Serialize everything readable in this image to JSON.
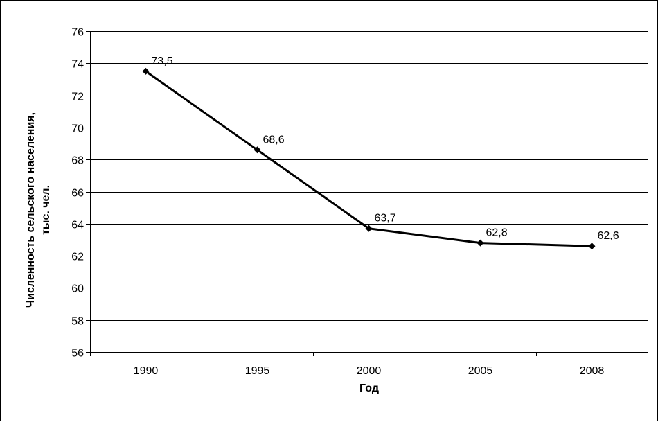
{
  "chart_data": {
    "type": "line",
    "title": "",
    "xlabel": "Год",
    "ylabel_lines": [
      "Численность сельского населения,",
      "тыс. чел."
    ],
    "categories": [
      "1990",
      "1995",
      "2000",
      "2005",
      "2008"
    ],
    "series": [
      {
        "values": [
          73.5,
          68.6,
          63.7,
          62.8,
          62.6
        ],
        "data_labels": [
          "73,5",
          "68,6",
          "63,7",
          "62,8",
          "62,6"
        ],
        "color": "#000000",
        "marker": "diamond"
      }
    ],
    "ylim": [
      56,
      76
    ],
    "ytick_step": 2,
    "grid": true,
    "legend": "none"
  }
}
